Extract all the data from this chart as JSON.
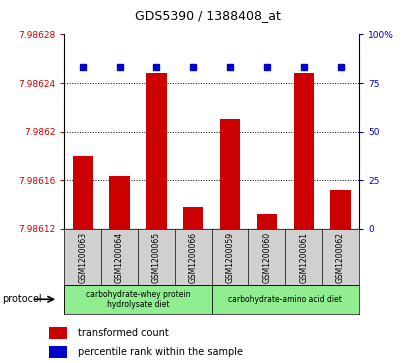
{
  "title": "GDS5390 / 1388408_at",
  "samples": [
    "GSM1200063",
    "GSM1200064",
    "GSM1200065",
    "GSM1200066",
    "GSM1200059",
    "GSM1200060",
    "GSM1200061",
    "GSM1200062"
  ],
  "bar_values": [
    7.98618,
    7.986163,
    7.986248,
    7.986138,
    7.98621,
    7.986132,
    7.986248,
    7.986152
  ],
  "percentile_values": [
    83,
    83,
    83,
    83,
    83,
    83,
    83,
    83
  ],
  "ymin": 7.98612,
  "ymax": 7.98628,
  "yticks": [
    7.98612,
    7.98616,
    7.9862,
    7.98624,
    7.98628
  ],
  "ytick_labels": [
    "7.98612",
    "7.98616",
    "7.9862",
    "7.98624",
    "7.98628"
  ],
  "y2min": 0,
  "y2max": 100,
  "y2ticks": [
    0,
    25,
    50,
    75,
    100
  ],
  "y2tick_labels": [
    "0",
    "25",
    "50",
    "75",
    "100%"
  ],
  "bar_color": "#cc0000",
  "percentile_color": "#0000cc",
  "bg_color": "#d0d0d0",
  "protocol_group1_label": "carbohydrate-whey protein\nhydrolysate diet",
  "protocol_group2_label": "carbohydrate-amino acid diet",
  "protocol_color": "#90ee90",
  "legend_items": [
    {
      "color": "#cc0000",
      "label": "transformed count"
    },
    {
      "color": "#0000cc",
      "label": "percentile rank within the sample"
    }
  ],
  "protocol_label": "protocol"
}
